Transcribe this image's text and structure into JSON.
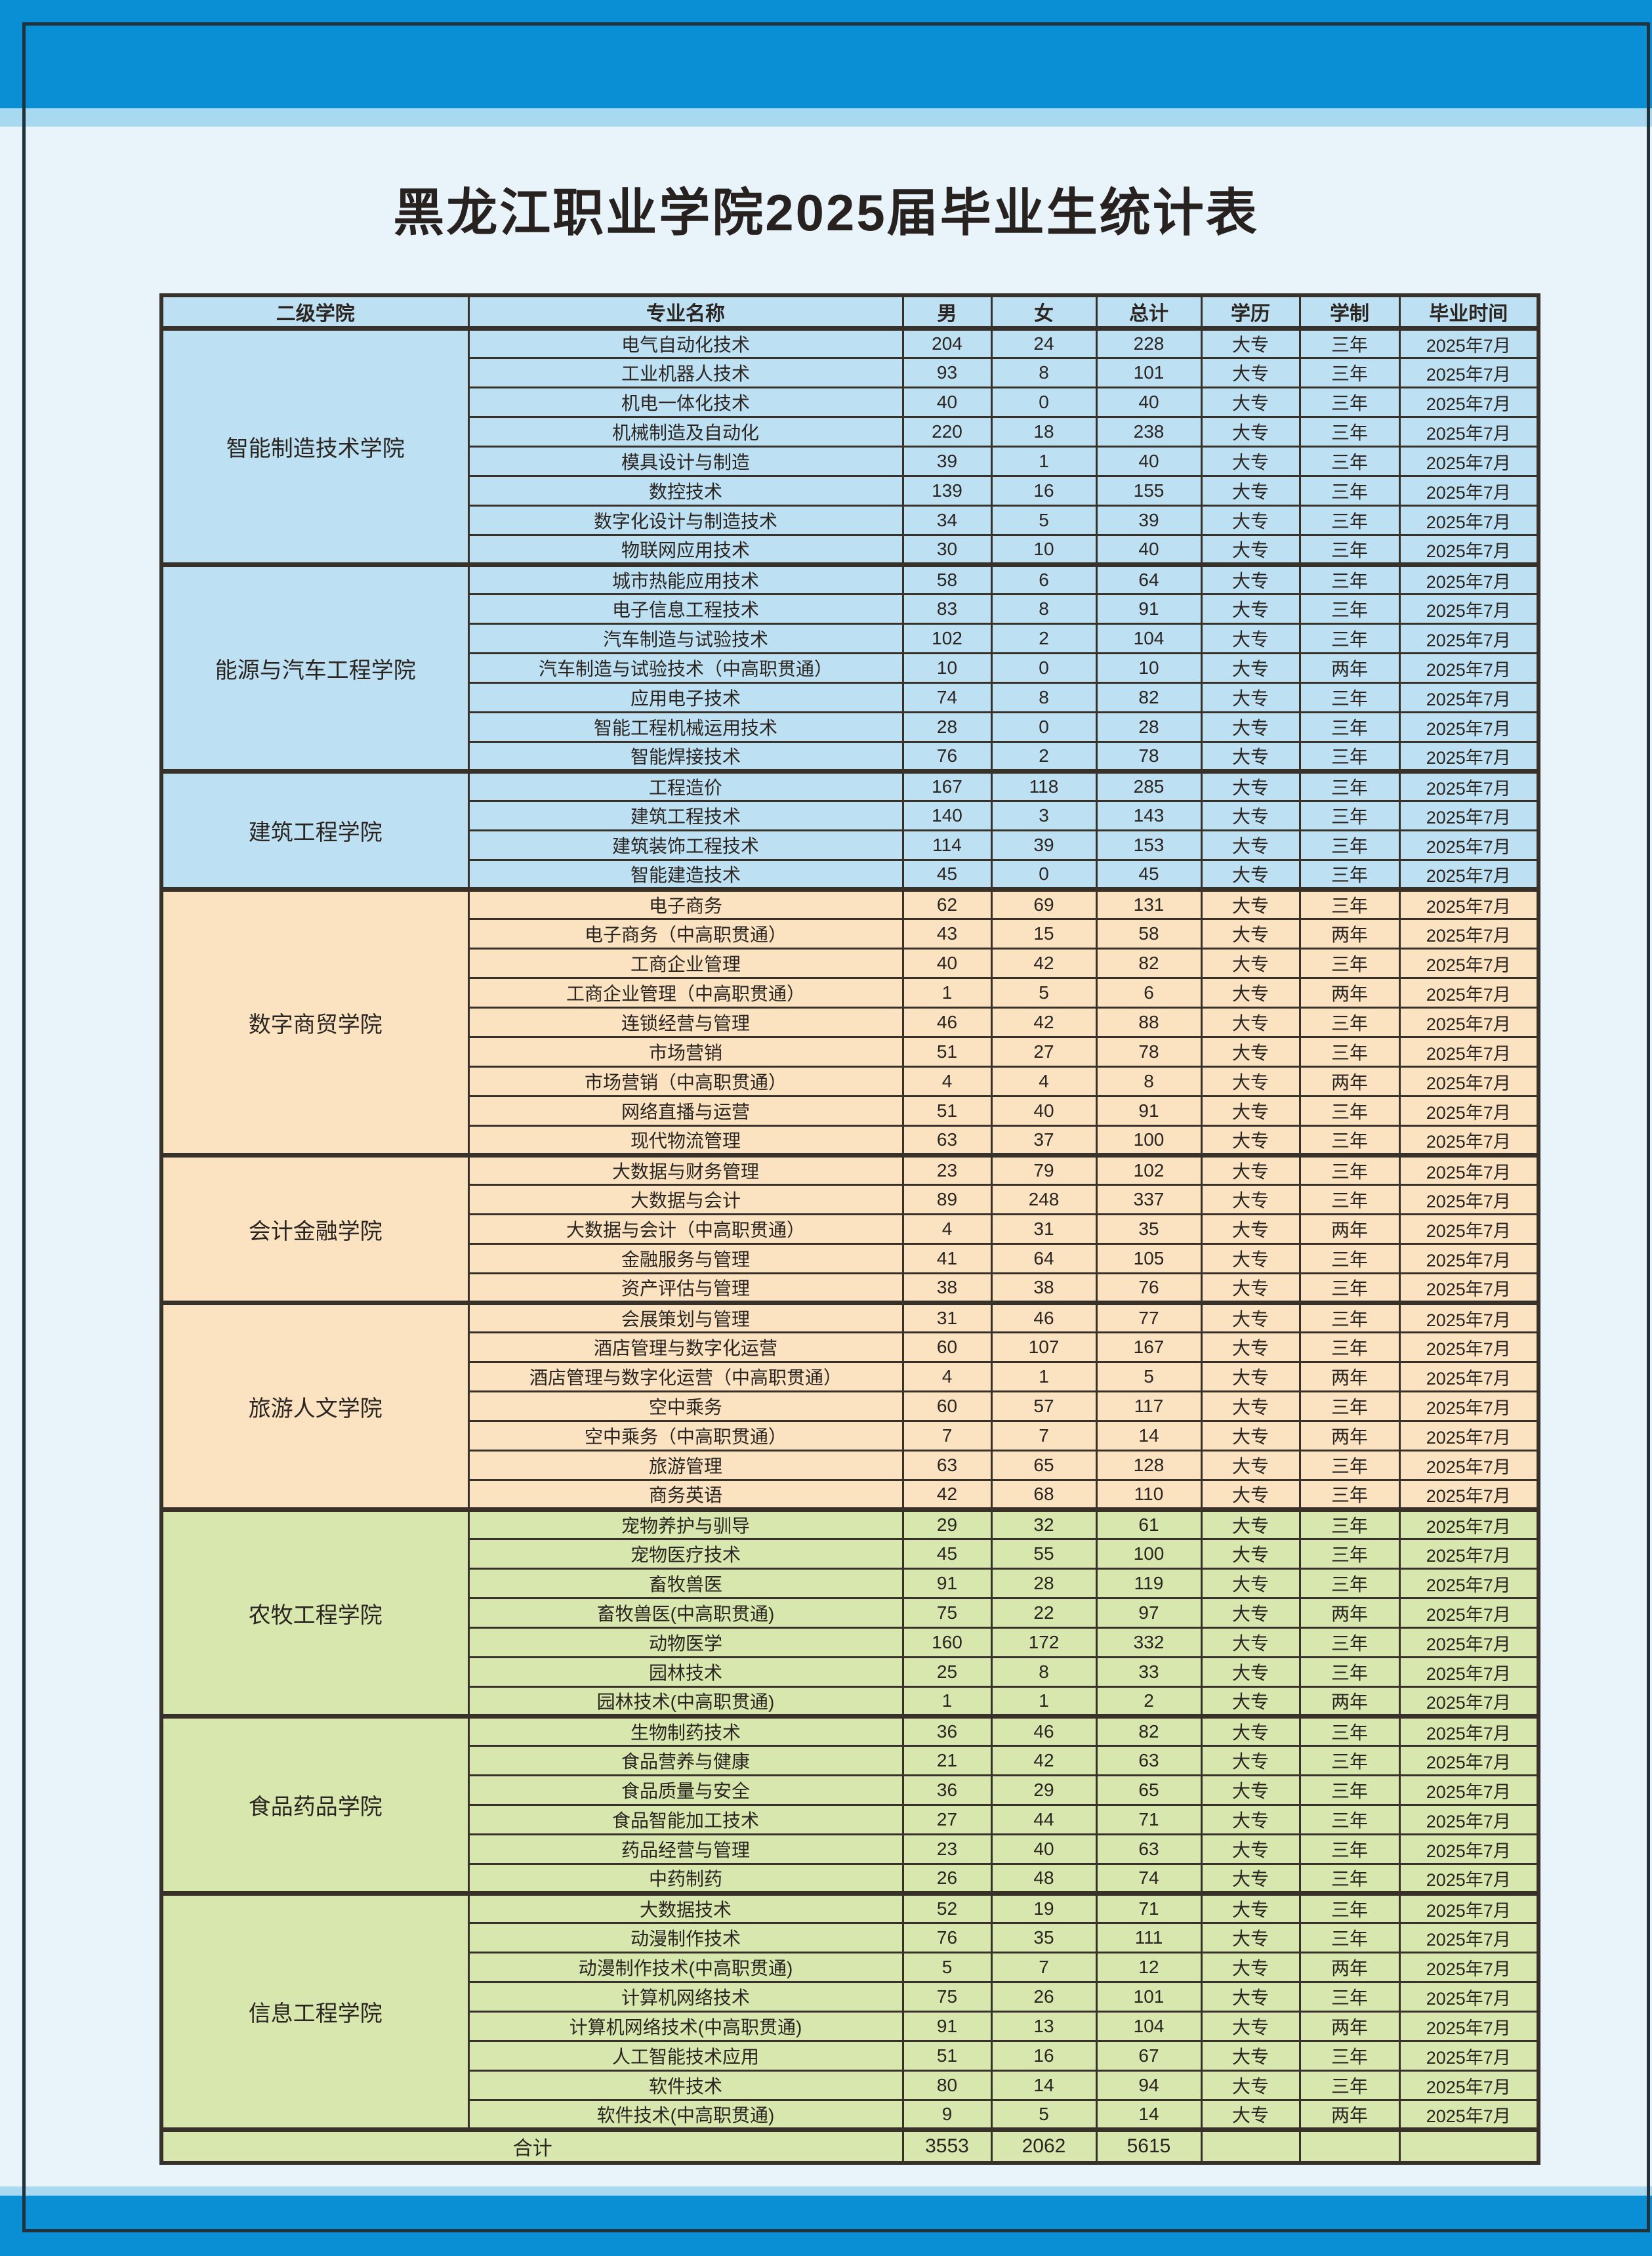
{
  "title": "黑龙江职业学院2025届毕业生统计表",
  "colors": {
    "page_blue": "#0a8fd4",
    "band_light_blue": "#a8d9f1",
    "page_pale": "#e8f3fa",
    "frame_dark": "#20333d",
    "grid_dark": "#38312a",
    "section_blue": "#bde1f3",
    "section_orange": "#fbe3c1",
    "section_green": "#d7e7ad",
    "text_dark": "#2b2522"
  },
  "table": {
    "headers": [
      "二级学院",
      "专业名称",
      "男",
      "女",
      "总计",
      "学历",
      "学制",
      "毕业时间"
    ],
    "colleges": [
      {
        "name": "智能制造技术学院",
        "theme": "blue",
        "majors": [
          {
            "major": "电气自动化技术",
            "male": "204",
            "female": "24",
            "total": "228",
            "degree": "大专",
            "duration": "三年",
            "grad": "2025年7月"
          },
          {
            "major": "工业机器人技术",
            "male": "93",
            "female": "8",
            "total": "101",
            "degree": "大专",
            "duration": "三年",
            "grad": "2025年7月"
          },
          {
            "major": "机电一体化技术",
            "male": "40",
            "female": "0",
            "total": "40",
            "degree": "大专",
            "duration": "三年",
            "grad": "2025年7月"
          },
          {
            "major": "机械制造及自动化",
            "male": "220",
            "female": "18",
            "total": "238",
            "degree": "大专",
            "duration": "三年",
            "grad": "2025年7月"
          },
          {
            "major": "模具设计与制造",
            "male": "39",
            "female": "1",
            "total": "40",
            "degree": "大专",
            "duration": "三年",
            "grad": "2025年7月"
          },
          {
            "major": "数控技术",
            "male": "139",
            "female": "16",
            "total": "155",
            "degree": "大专",
            "duration": "三年",
            "grad": "2025年7月"
          },
          {
            "major": "数字化设计与制造技术",
            "male": "34",
            "female": "5",
            "total": "39",
            "degree": "大专",
            "duration": "三年",
            "grad": "2025年7月"
          },
          {
            "major": "物联网应用技术",
            "male": "30",
            "female": "10",
            "total": "40",
            "degree": "大专",
            "duration": "三年",
            "grad": "2025年7月"
          }
        ]
      },
      {
        "name": "能源与汽车工程学院",
        "theme": "blue",
        "majors": [
          {
            "major": "城市热能应用技术",
            "male": "58",
            "female": "6",
            "total": "64",
            "degree": "大专",
            "duration": "三年",
            "grad": "2025年7月"
          },
          {
            "major": "电子信息工程技术",
            "male": "83",
            "female": "8",
            "total": "91",
            "degree": "大专",
            "duration": "三年",
            "grad": "2025年7月"
          },
          {
            "major": "汽车制造与试验技术",
            "male": "102",
            "female": "2",
            "total": "104",
            "degree": "大专",
            "duration": "三年",
            "grad": "2025年7月"
          },
          {
            "major": "汽车制造与试验技术（中高职贯通）",
            "male": "10",
            "female": "0",
            "total": "10",
            "degree": "大专",
            "duration": "两年",
            "grad": "2025年7月"
          },
          {
            "major": "应用电子技术",
            "male": "74",
            "female": "8",
            "total": "82",
            "degree": "大专",
            "duration": "三年",
            "grad": "2025年7月"
          },
          {
            "major": "智能工程机械运用技术",
            "male": "28",
            "female": "0",
            "total": "28",
            "degree": "大专",
            "duration": "三年",
            "grad": "2025年7月"
          },
          {
            "major": "智能焊接技术",
            "male": "76",
            "female": "2",
            "total": "78",
            "degree": "大专",
            "duration": "三年",
            "grad": "2025年7月"
          }
        ]
      },
      {
        "name": "建筑工程学院",
        "theme": "blue",
        "majors": [
          {
            "major": "工程造价",
            "male": "167",
            "female": "118",
            "total": "285",
            "degree": "大专",
            "duration": "三年",
            "grad": "2025年7月"
          },
          {
            "major": "建筑工程技术",
            "male": "140",
            "female": "3",
            "total": "143",
            "degree": "大专",
            "duration": "三年",
            "grad": "2025年7月"
          },
          {
            "major": "建筑装饰工程技术",
            "male": "114",
            "female": "39",
            "total": "153",
            "degree": "大专",
            "duration": "三年",
            "grad": "2025年7月"
          },
          {
            "major": "智能建造技术",
            "male": "45",
            "female": "0",
            "total": "45",
            "degree": "大专",
            "duration": "三年",
            "grad": "2025年7月"
          }
        ]
      },
      {
        "name": "数字商贸学院",
        "theme": "orange",
        "majors": [
          {
            "major": "电子商务",
            "male": "62",
            "female": "69",
            "total": "131",
            "degree": "大专",
            "duration": "三年",
            "grad": "2025年7月"
          },
          {
            "major": "电子商务（中高职贯通）",
            "male": "43",
            "female": "15",
            "total": "58",
            "degree": "大专",
            "duration": "两年",
            "grad": "2025年7月"
          },
          {
            "major": "工商企业管理",
            "male": "40",
            "female": "42",
            "total": "82",
            "degree": "大专",
            "duration": "三年",
            "grad": "2025年7月"
          },
          {
            "major": "工商企业管理（中高职贯通）",
            "male": "1",
            "female": "5",
            "total": "6",
            "degree": "大专",
            "duration": "两年",
            "grad": "2025年7月"
          },
          {
            "major": "连锁经营与管理",
            "male": "46",
            "female": "42",
            "total": "88",
            "degree": "大专",
            "duration": "三年",
            "grad": "2025年7月"
          },
          {
            "major": "市场营销",
            "male": "51",
            "female": "27",
            "total": "78",
            "degree": "大专",
            "duration": "三年",
            "grad": "2025年7月"
          },
          {
            "major": "市场营销（中高职贯通）",
            "male": "4",
            "female": "4",
            "total": "8",
            "degree": "大专",
            "duration": "两年",
            "grad": "2025年7月"
          },
          {
            "major": "网络直播与运营",
            "male": "51",
            "female": "40",
            "total": "91",
            "degree": "大专",
            "duration": "三年",
            "grad": "2025年7月"
          },
          {
            "major": "现代物流管理",
            "male": "63",
            "female": "37",
            "total": "100",
            "degree": "大专",
            "duration": "三年",
            "grad": "2025年7月"
          }
        ]
      },
      {
        "name": "会计金融学院",
        "theme": "orange",
        "majors": [
          {
            "major": "大数据与财务管理",
            "male": "23",
            "female": "79",
            "total": "102",
            "degree": "大专",
            "duration": "三年",
            "grad": "2025年7月"
          },
          {
            "major": "大数据与会计",
            "male": "89",
            "female": "248",
            "total": "337",
            "degree": "大专",
            "duration": "三年",
            "grad": "2025年7月"
          },
          {
            "major": "大数据与会计（中高职贯通）",
            "male": "4",
            "female": "31",
            "total": "35",
            "degree": "大专",
            "duration": "两年",
            "grad": "2025年7月"
          },
          {
            "major": "金融服务与管理",
            "male": "41",
            "female": "64",
            "total": "105",
            "degree": "大专",
            "duration": "三年",
            "grad": "2025年7月"
          },
          {
            "major": "资产评估与管理",
            "male": "38",
            "female": "38",
            "total": "76",
            "degree": "大专",
            "duration": "三年",
            "grad": "2025年7月"
          }
        ]
      },
      {
        "name": "旅游人文学院",
        "theme": "orange",
        "majors": [
          {
            "major": "会展策划与管理",
            "male": "31",
            "female": "46",
            "total": "77",
            "degree": "大专",
            "duration": "三年",
            "grad": "2025年7月"
          },
          {
            "major": "酒店管理与数字化运营",
            "male": "60",
            "female": "107",
            "total": "167",
            "degree": "大专",
            "duration": "三年",
            "grad": "2025年7月"
          },
          {
            "major": "酒店管理与数字化运营（中高职贯通）",
            "male": "4",
            "female": "1",
            "total": "5",
            "degree": "大专",
            "duration": "两年",
            "grad": "2025年7月"
          },
          {
            "major": "空中乘务",
            "male": "60",
            "female": "57",
            "total": "117",
            "degree": "大专",
            "duration": "三年",
            "grad": "2025年7月"
          },
          {
            "major": "空中乘务（中高职贯通）",
            "male": "7",
            "female": "7",
            "total": "14",
            "degree": "大专",
            "duration": "两年",
            "grad": "2025年7月"
          },
          {
            "major": "旅游管理",
            "male": "63",
            "female": "65",
            "total": "128",
            "degree": "大专",
            "duration": "三年",
            "grad": "2025年7月"
          },
          {
            "major": "商务英语",
            "male": "42",
            "female": "68",
            "total": "110",
            "degree": "大专",
            "duration": "三年",
            "grad": "2025年7月"
          }
        ]
      },
      {
        "name": "农牧工程学院",
        "theme": "green",
        "majors": [
          {
            "major": "宠物养护与驯导",
            "male": "29",
            "female": "32",
            "total": "61",
            "degree": "大专",
            "duration": "三年",
            "grad": "2025年7月"
          },
          {
            "major": "宠物医疗技术",
            "male": "45",
            "female": "55",
            "total": "100",
            "degree": "大专",
            "duration": "三年",
            "grad": "2025年7月"
          },
          {
            "major": "畜牧兽医",
            "male": "91",
            "female": "28",
            "total": "119",
            "degree": "大专",
            "duration": "三年",
            "grad": "2025年7月"
          },
          {
            "major": "畜牧兽医(中高职贯通)",
            "male": "75",
            "female": "22",
            "total": "97",
            "degree": "大专",
            "duration": "两年",
            "grad": "2025年7月"
          },
          {
            "major": "动物医学",
            "male": "160",
            "female": "172",
            "total": "332",
            "degree": "大专",
            "duration": "三年",
            "grad": "2025年7月"
          },
          {
            "major": "园林技术",
            "male": "25",
            "female": "8",
            "total": "33",
            "degree": "大专",
            "duration": "三年",
            "grad": "2025年7月"
          },
          {
            "major": "园林技术(中高职贯通)",
            "male": "1",
            "female": "1",
            "total": "2",
            "degree": "大专",
            "duration": "两年",
            "grad": "2025年7月"
          }
        ]
      },
      {
        "name": "食品药品学院",
        "theme": "green",
        "majors": [
          {
            "major": "生物制药技术",
            "male": "36",
            "female": "46",
            "total": "82",
            "degree": "大专",
            "duration": "三年",
            "grad": "2025年7月"
          },
          {
            "major": "食品营养与健康",
            "male": "21",
            "female": "42",
            "total": "63",
            "degree": "大专",
            "duration": "三年",
            "grad": "2025年7月"
          },
          {
            "major": "食品质量与安全",
            "male": "36",
            "female": "29",
            "total": "65",
            "degree": "大专",
            "duration": "三年",
            "grad": "2025年7月"
          },
          {
            "major": "食品智能加工技术",
            "male": "27",
            "female": "44",
            "total": "71",
            "degree": "大专",
            "duration": "三年",
            "grad": "2025年7月"
          },
          {
            "major": "药品经营与管理",
            "male": "23",
            "female": "40",
            "total": "63",
            "degree": "大专",
            "duration": "三年",
            "grad": "2025年7月"
          },
          {
            "major": "中药制药",
            "male": "26",
            "female": "48",
            "total": "74",
            "degree": "大专",
            "duration": "三年",
            "grad": "2025年7月"
          }
        ]
      },
      {
        "name": "信息工程学院",
        "theme": "green",
        "majors": [
          {
            "major": "大数据技术",
            "male": "52",
            "female": "19",
            "total": "71",
            "degree": "大专",
            "duration": "三年",
            "grad": "2025年7月"
          },
          {
            "major": "动漫制作技术",
            "male": "76",
            "female": "35",
            "total": "111",
            "degree": "大专",
            "duration": "三年",
            "grad": "2025年7月"
          },
          {
            "major": "动漫制作技术(中高职贯通)",
            "male": "5",
            "female": "7",
            "total": "12",
            "degree": "大专",
            "duration": "两年",
            "grad": "2025年7月"
          },
          {
            "major": "计算机网络技术",
            "male": "75",
            "female": "26",
            "total": "101",
            "degree": "大专",
            "duration": "三年",
            "grad": "2025年7月"
          },
          {
            "major": "计算机网络技术(中高职贯通)",
            "male": "91",
            "female": "13",
            "total": "104",
            "degree": "大专",
            "duration": "两年",
            "grad": "2025年7月"
          },
          {
            "major": "人工智能技术应用",
            "male": "51",
            "female": "16",
            "total": "67",
            "degree": "大专",
            "duration": "三年",
            "grad": "2025年7月"
          },
          {
            "major": "软件技术",
            "male": "80",
            "female": "14",
            "total": "94",
            "degree": "大专",
            "duration": "三年",
            "grad": "2025年7月"
          },
          {
            "major": "软件技术(中高职贯通)",
            "male": "9",
            "female": "5",
            "total": "14",
            "degree": "大专",
            "duration": "两年",
            "grad": "2025年7月"
          }
        ]
      }
    ],
    "footer": {
      "label": "合计",
      "male": "3553",
      "female": "2062",
      "total": "5615",
      "degree": "",
      "duration": "",
      "grad": ""
    }
  }
}
